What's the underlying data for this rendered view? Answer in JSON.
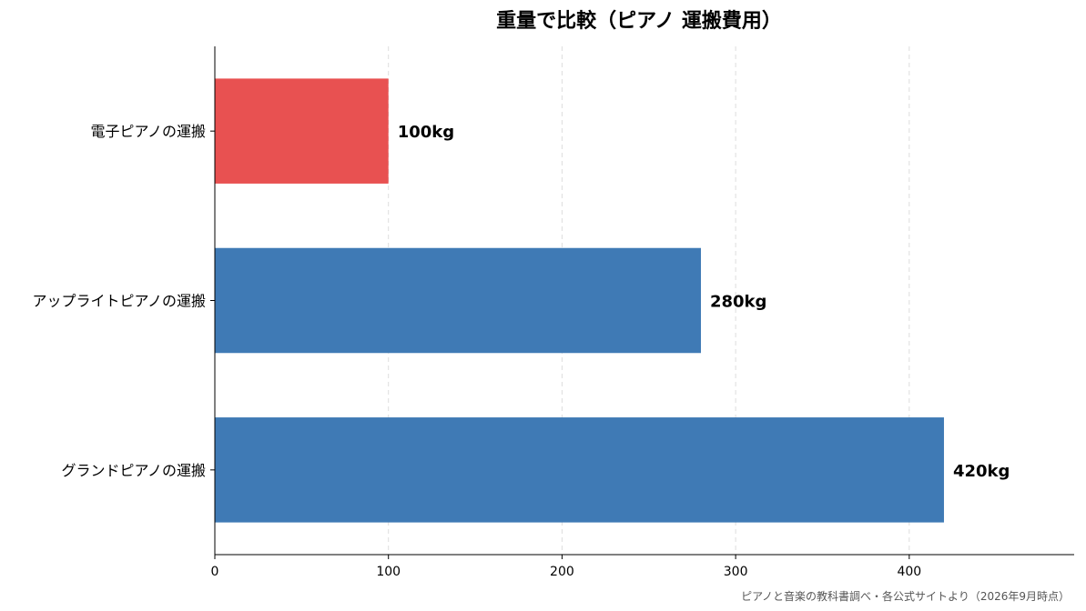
{
  "chart_data": {
    "type": "bar",
    "orientation": "horizontal",
    "title": "重量で比較（ピアノ 運搬費用）",
    "categories": [
      "電子ピアノの運搬",
      "アップライトピアノの運搬",
      "グランドピアノの運搬"
    ],
    "values": [
      100,
      280,
      420
    ],
    "data_labels": [
      "100kg",
      "280kg",
      "420kg"
    ],
    "xlabel": "",
    "ylabel": "",
    "xlim": [
      0,
      495
    ],
    "xticks": [
      0,
      100,
      200,
      300,
      400
    ],
    "grid": "vertical dashed",
    "colors": [
      "#e85151",
      "#3f7ab5",
      "#3f7ab5"
    ],
    "source_note": "ピアノと音楽の教科書調べ・各公式サイトより（2026年9月時点）"
  }
}
